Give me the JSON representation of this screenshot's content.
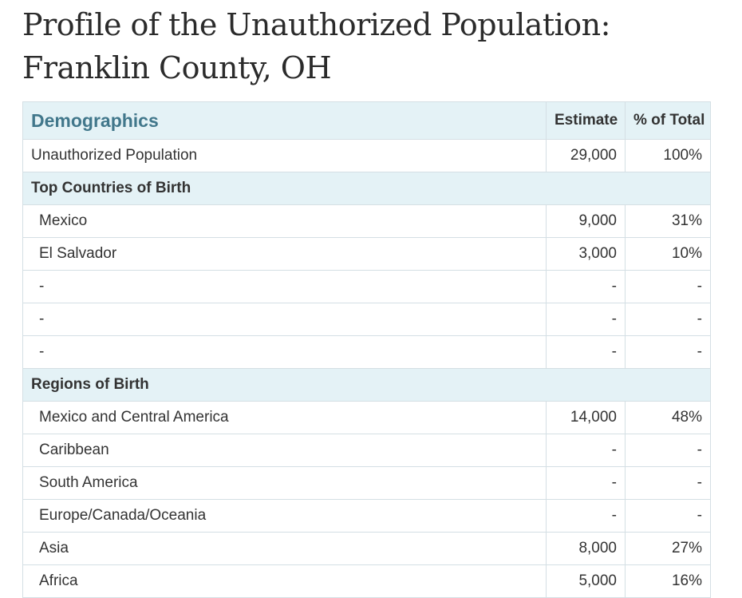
{
  "title_lines": [
    "Profile of the Unauthorized Population:",
    "Franklin County, OH"
  ],
  "table": {
    "header": [
      "Demographics",
      "Estimate",
      "% of Total"
    ],
    "first_row": [
      "Unauthorized Population",
      "29,000",
      "100%"
    ],
    "sections": [
      {
        "title": "Top Countries of Birth",
        "rows": [
          [
            "Mexico",
            "9,000",
            "31%"
          ],
          [
            "El Salvador",
            "3,000",
            "10%"
          ],
          [
            "-",
            "-",
            "-"
          ],
          [
            "-",
            "-",
            "-"
          ],
          [
            "-",
            "-",
            "-"
          ]
        ]
      },
      {
        "title": "Regions of Birth",
        "rows": [
          [
            "Mexico and Central America",
            "14,000",
            "48%"
          ],
          [
            "Caribbean",
            "-",
            "-"
          ],
          [
            "South America",
            "-",
            "-"
          ],
          [
            "Europe/Canada/Oceania",
            "-",
            "-"
          ],
          [
            "Asia",
            "8,000",
            "27%"
          ],
          [
            "Africa",
            "5,000",
            "16%"
          ]
        ]
      }
    ]
  }
}
